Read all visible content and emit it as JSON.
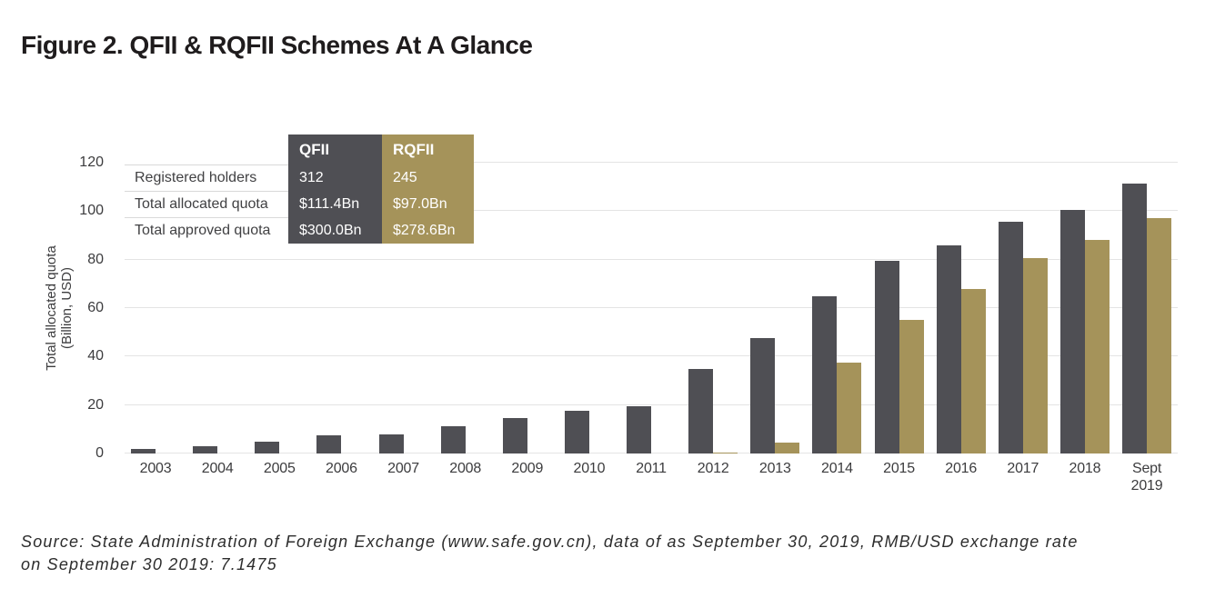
{
  "figure": {
    "title": "Figure 2. QFII & RQFII Schemes At A Glance"
  },
  "colors": {
    "qfii": "#4f4f54",
    "rqfii": "#a5935a",
    "gridline": "#e4e4e4",
    "axis_text": "#3c3c3e",
    "title_text": "#1f1c1d",
    "source_text": "#2d2d2d",
    "table_label_text": "#414143",
    "table_separator": "#d9d9d9",
    "white_text": "#ffffff"
  },
  "stats_table": {
    "columns": [
      "QFII",
      "RQFII"
    ],
    "rows": [
      {
        "label": "Registered holders",
        "qfii": "312",
        "rqfii": "245"
      },
      {
        "label": "Total allocated quota",
        "qfii": "$111.4Bn",
        "rqfii": "$97.0Bn"
      },
      {
        "label": "Total approved quota",
        "qfii": "$300.0Bn",
        "rqfii": "$278.6Bn"
      }
    ]
  },
  "chart_data": {
    "type": "bar",
    "title": "Figure 2. QFII & RQFII Schemes At A Glance",
    "xlabel": "",
    "ylabel": "Total allocated quota\n(Billion, USD)",
    "ylim": [
      0,
      120
    ],
    "yticks": [
      0,
      20,
      40,
      60,
      80,
      100,
      120
    ],
    "grid": true,
    "legend_position": "table-header",
    "categories": [
      "2003",
      "2004",
      "2005",
      "2006",
      "2007",
      "2008",
      "2009",
      "2010",
      "2011",
      "2012",
      "2013",
      "2014",
      "2015",
      "2016",
      "2017",
      "2018",
      "Sept\n2019"
    ],
    "series": [
      {
        "name": "QFII",
        "color": "#4f4f54",
        "values": [
          1.7,
          3,
          4.7,
          7.6,
          8,
          11.2,
          14.5,
          17.5,
          19.5,
          35,
          47.5,
          65,
          79.5,
          86,
          95.5,
          100.5,
          111.4
        ]
      },
      {
        "name": "RQFII",
        "color": "#a5935a",
        "values": [
          0,
          0,
          0,
          0,
          0,
          0,
          0,
          0,
          0,
          0.5,
          4.5,
          37.5,
          55,
          68,
          80.5,
          88,
          97
        ]
      }
    ]
  },
  "source_note": "Source: State Administration of Foreign Exchange (www.safe.gov.cn), data of as September 30, 2019, RMB/USD exchange rate\non September 30 2019: 7.1475"
}
